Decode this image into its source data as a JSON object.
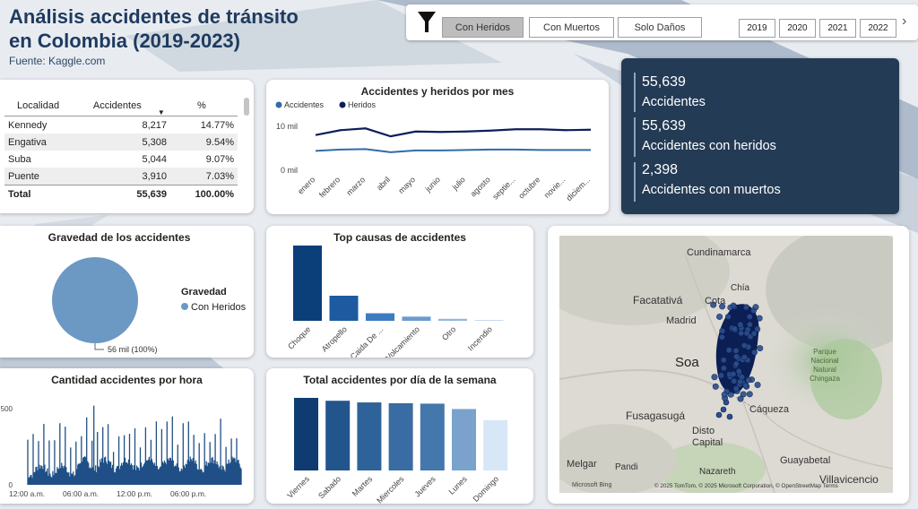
{
  "header": {
    "title_line1": "Análisis accidentes de tránsito",
    "title_line2": "en Colombia (2019-2023)",
    "source": "Fuente: Kaggle.com"
  },
  "filters": {
    "buttons": [
      "Con Heridos",
      "Con Muertos",
      "Solo Daños"
    ],
    "selected": "Con Heridos",
    "years": [
      "2019",
      "2020",
      "2021",
      "2022"
    ]
  },
  "table": {
    "headers": [
      "Localidad",
      "Accidentes",
      "%"
    ],
    "rows": [
      {
        "name": "Kennedy",
        "value": "8,217",
        "pct": "14.77%"
      },
      {
        "name": "Engativa",
        "value": "5,308",
        "pct": "9.54%"
      },
      {
        "name": "Suba",
        "value": "5,044",
        "pct": "9.07%"
      },
      {
        "name": "Puente",
        "value": "3,910",
        "pct": "7.03%"
      }
    ],
    "total": {
      "name": "Total",
      "value": "55,639",
      "pct": "100.00%"
    }
  },
  "kpis": [
    {
      "value": "55,639",
      "label": "Accidentes"
    },
    {
      "value": "55,639",
      "label": "Accidentes con heridos"
    },
    {
      "value": "2,398",
      "label": "Accidentes con muertos"
    }
  ],
  "map": {
    "labels": [
      "Cundinamarca",
      "Chía",
      "Facatativá",
      "Cota",
      "Madrid",
      "Soa",
      "Parque Nacional Natural Chingaza",
      "Fusagasugá",
      "Cáqueza",
      "Distrito Capital",
      "Melgar",
      "Pandi",
      "Nazareth",
      "Guayabetal",
      "Villavicencio"
    ],
    "attribution": "© 2025 TomTom, © 2025 Microsoft Corporation, © OpenStreetMap Terms",
    "brand": "Microsoft Bing"
  },
  "colors": {
    "navy": "#0d2a5c",
    "accent": "#2f6ca8",
    "kpi_bg": "#243b55",
    "pie": "#6c98c4"
  },
  "chart_data": [
    {
      "type": "line",
      "title": "Accidentes y heridos por mes",
      "categories": [
        "enero",
        "febrero",
        "marzo",
        "abril",
        "mayo",
        "junio",
        "julio",
        "agosto",
        "septie...",
        "octubre",
        "novie...",
        "diciem..."
      ],
      "yticks": [
        "10 mil",
        "0 mil"
      ],
      "ylim": [
        0,
        12000
      ],
      "series": [
        {
          "name": "Accidentes",
          "color": "#2f6ca8",
          "values": [
            4400,
            4700,
            4800,
            4100,
            4500,
            4500,
            4600,
            4700,
            4700,
            4600,
            4600,
            4600
          ]
        },
        {
          "name": "Heridos",
          "color": "#0d1e5c",
          "values": [
            8000,
            9100,
            9500,
            7700,
            8800,
            8700,
            8800,
            9000,
            9300,
            9300,
            9100,
            9200
          ]
        }
      ]
    },
    {
      "type": "pie",
      "title": "Gravedad de los accidentes",
      "legend_title": "Gravedad",
      "slices": [
        {
          "name": "Con Heridos",
          "value": 56000,
          "label": "56 mil (100%)"
        }
      ]
    },
    {
      "type": "bar",
      "title": "Top causas de accidentes",
      "categories": [
        "Choque",
        "Atropello",
        "Caida De ...",
        "Volcamiento",
        "Otro",
        "Incendio"
      ],
      "values": [
        45000,
        15000,
        4500,
        2500,
        1200,
        400
      ],
      "colors": [
        "#0b3f7a",
        "#1d5aa0",
        "#3d7cbf",
        "#6b9bd0",
        "#96b7de",
        "#b5cde8"
      ]
    },
    {
      "type": "bar",
      "title": "Cantidad accidentes por hora",
      "yticks": [
        "500",
        "0"
      ],
      "ylim": [
        0,
        600
      ],
      "xticks": [
        "12:00 a.m.",
        "06:00 a.m.",
        "12:00 p.m.",
        "06:00 p.m."
      ],
      "series_seed": 7
    },
    {
      "type": "bar",
      "title": "Total accidentes por día de la semana",
      "categories": [
        "Viernes",
        "Sabado",
        "Martes",
        "Miercoles",
        "Jueves",
        "Lunes",
        "Domingo"
      ],
      "values": [
        8800,
        8450,
        8250,
        8150,
        8100,
        7450,
        6100
      ],
      "colors": [
        "#0e3c70",
        "#23558d",
        "#2e6399",
        "#386ca2",
        "#4477ab",
        "#7aa2cc",
        "#d7e7f8"
      ]
    }
  ]
}
